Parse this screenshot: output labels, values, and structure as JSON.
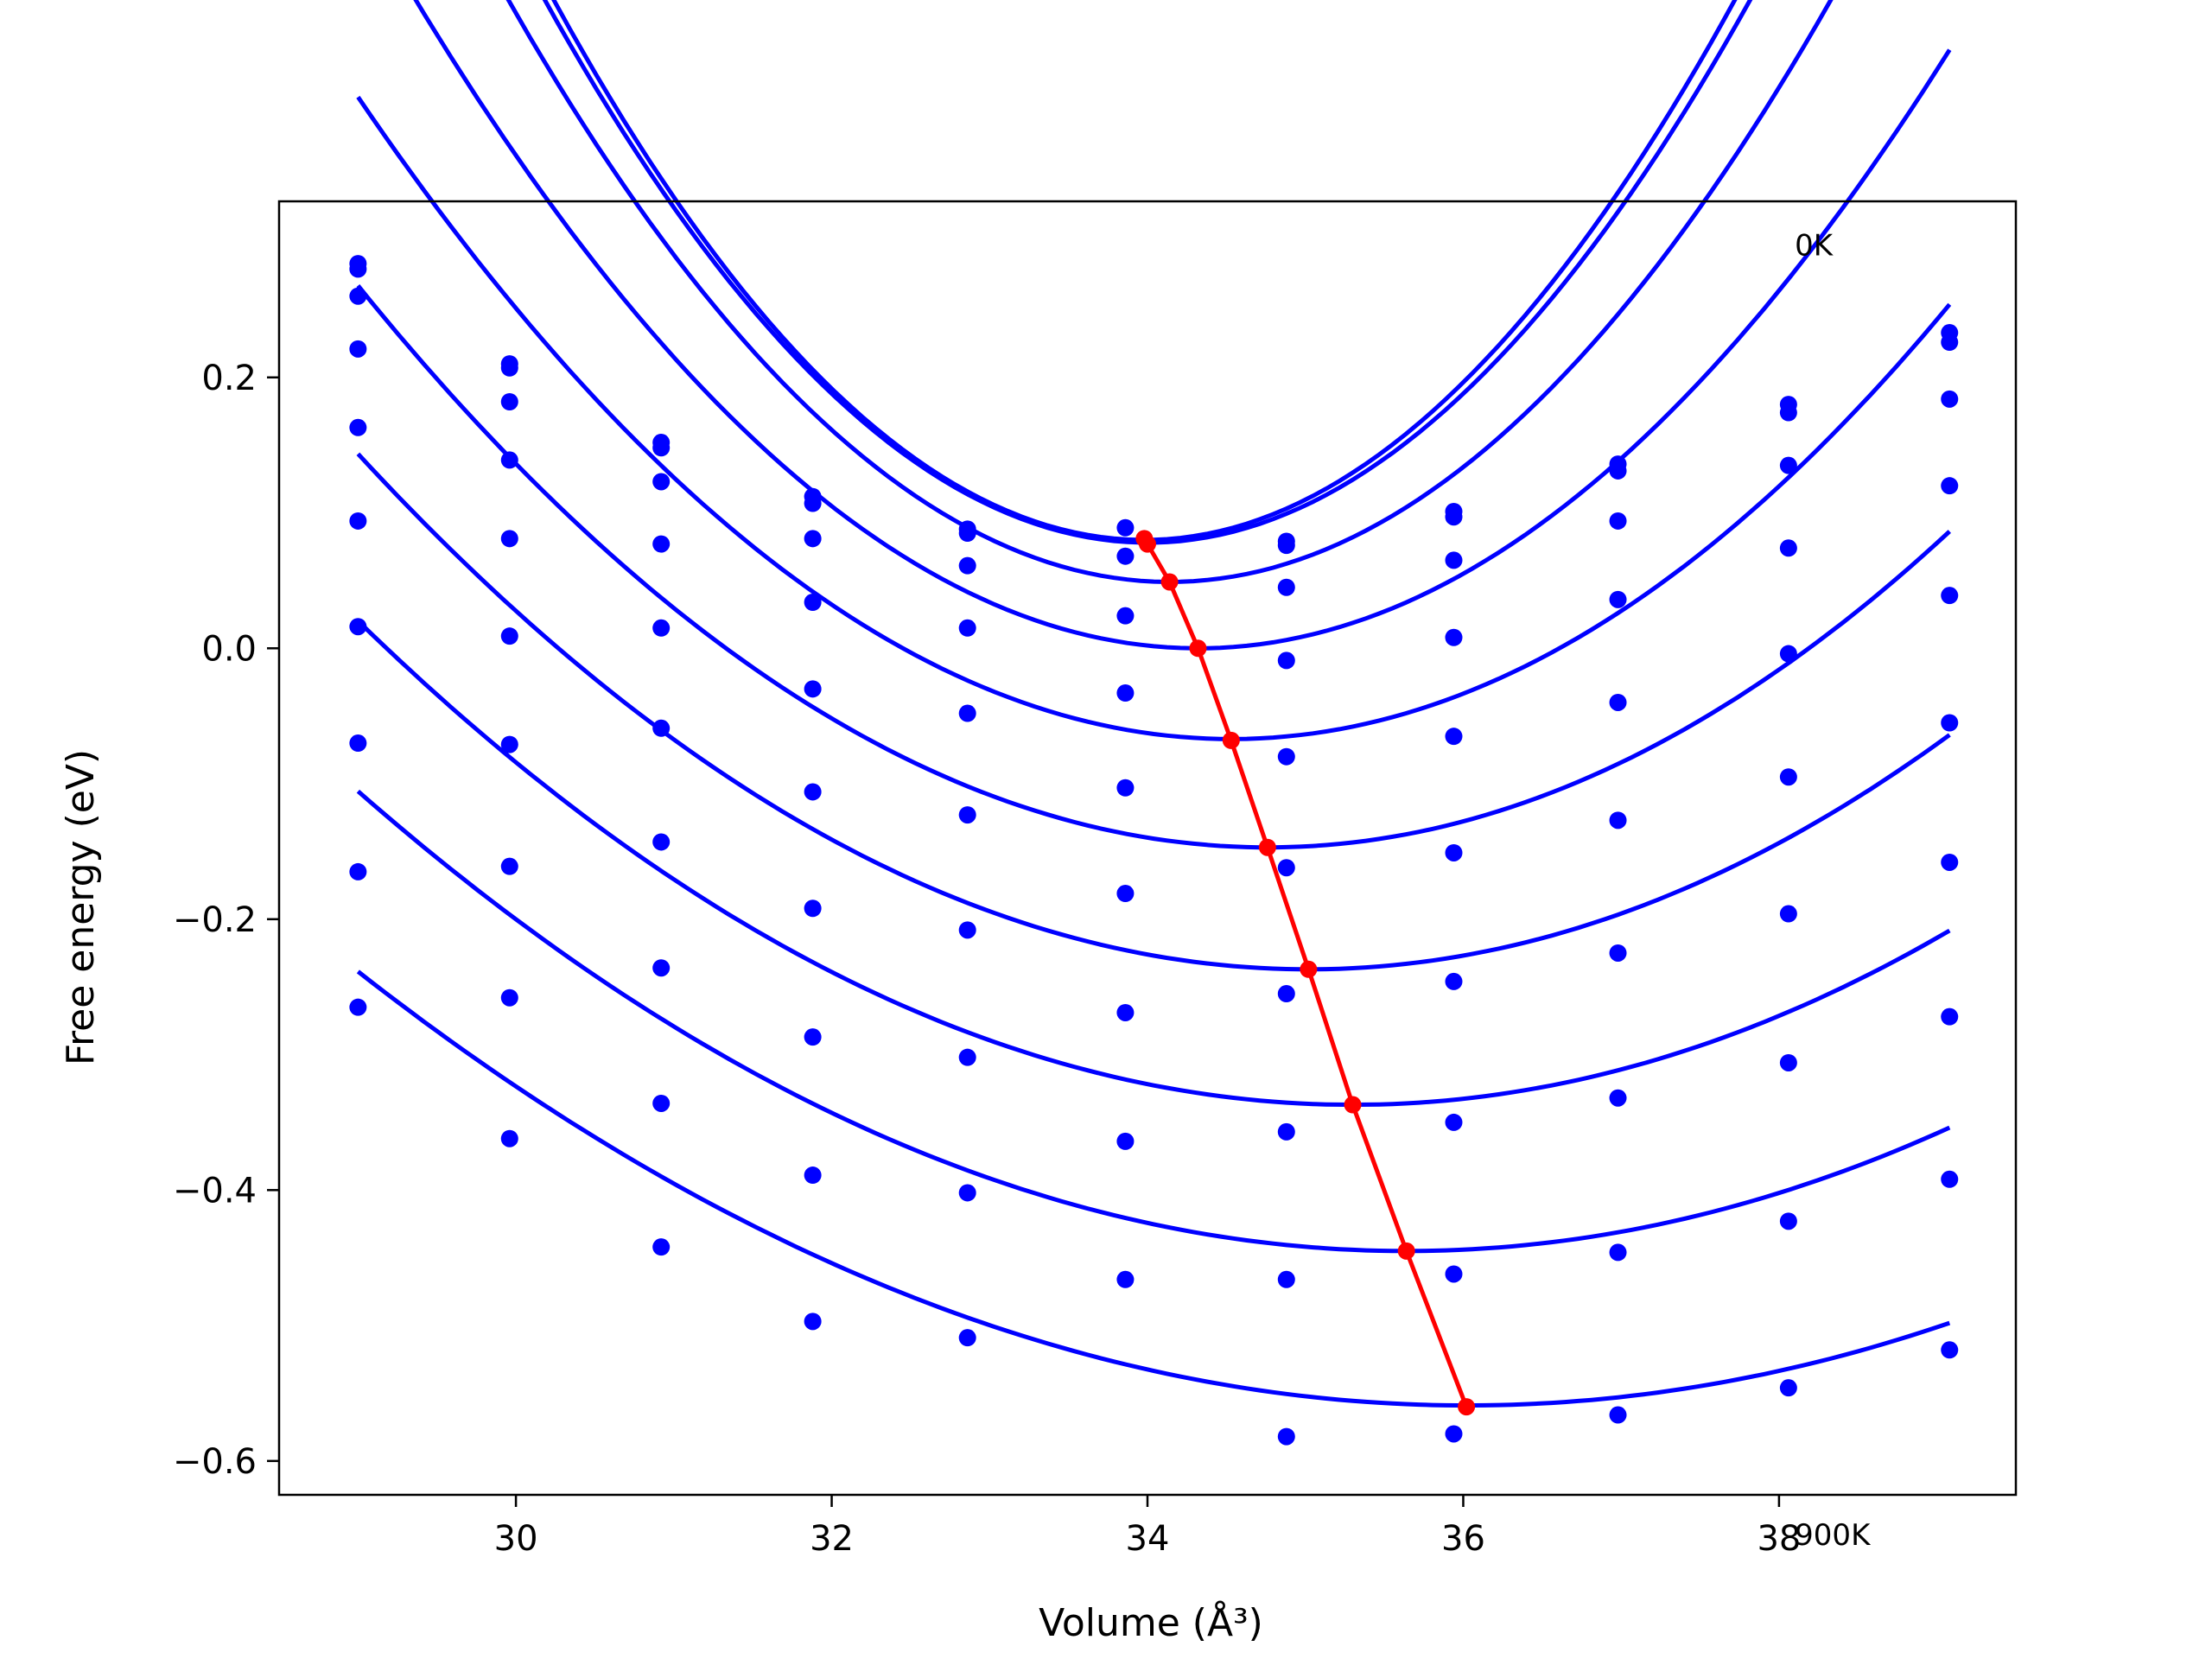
{
  "chart_data": {
    "type": "scatter",
    "xlabel": "Volume (Å³)",
    "ylabel": "Free energy (eV)",
    "xlim": [
      28.5,
      39.5
    ],
    "ylim": [
      -0.625,
      0.33
    ],
    "xticks": [
      30,
      32,
      34,
      36,
      38
    ],
    "xtick_labels": [
      "30",
      "32",
      "34",
      "36",
      "38"
    ],
    "yticks": [
      -0.6,
      -0.4,
      -0.2,
      0.0,
      0.2
    ],
    "ytick_labels": [
      "−0.6",
      "−0.4",
      "−0.2",
      "0.0",
      "0.2"
    ],
    "grid": false,
    "annotations": [
      {
        "text": "0K",
        "x": 38.1,
        "y": 0.29
      },
      {
        "text": "900K",
        "x": 38.1,
        "y": -0.662
      }
    ],
    "colors": {
      "points": "#0000ff",
      "fit": "#0000ff",
      "minimum": "#ff0000"
    },
    "volumes": [
      29.0,
      29.96,
      30.92,
      31.88,
      32.86,
      33.86,
      34.88,
      35.94,
      36.98,
      38.06,
      39.08
    ],
    "series": [
      {
        "energies": [
          0.284,
          0.21,
          0.152,
          0.112,
          0.088,
          0.089,
          0.079,
          0.101,
          0.136,
          0.18,
          0.233
        ],
        "min": {
          "x": 33.98,
          "y": 0.081
        },
        "fit": {
          "a": 0.0285,
          "b": 33.98,
          "c": 0.08
        }
      },
      {
        "energies": [
          0.28,
          0.207,
          0.148,
          0.107,
          0.085,
          0.068,
          0.076,
          0.097,
          0.131,
          0.174,
          0.226
        ],
        "min": {
          "x": 34.0,
          "y": 0.077
        },
        "fit": {
          "a": 0.0275,
          "b": 34.0,
          "c": 0.078
        }
      },
      {
        "energies": [
          0.26,
          0.182,
          0.123,
          0.081,
          0.061,
          0.024,
          0.045,
          0.065,
          0.094,
          0.135,
          0.184
        ],
        "min": {
          "x": 34.14,
          "y": 0.049
        },
        "fit": {
          "a": 0.0245,
          "b": 34.14,
          "c": 0.049
        }
      },
      {
        "energies": [
          0.221,
          0.139,
          0.077,
          0.034,
          0.015,
          -0.033,
          -0.009,
          0.008,
          0.036,
          0.074,
          0.12
        ],
        "min": {
          "x": 34.32,
          "y": 0.0
        },
        "fit": {
          "a": 0.0195,
          "b": 34.32,
          "c": 0.0
        }
      },
      {
        "energies": [
          0.163,
          0.081,
          0.015,
          -0.03,
          -0.048,
          -0.103,
          -0.08,
          -0.065,
          -0.04,
          -0.004,
          0.039
        ],
        "min": {
          "x": 34.53,
          "y": -0.068
        },
        "fit": {
          "a": 0.0155,
          "b": 34.53,
          "c": -0.067
        }
      },
      {
        "energies": [
          0.094,
          0.009,
          -0.059,
          -0.106,
          -0.123,
          -0.181,
          -0.162,
          -0.151,
          -0.127,
          -0.095,
          -0.055
        ],
        "min": {
          "x": 34.76,
          "y": -0.147
        },
        "fit": {
          "a": 0.0125,
          "b": 34.76,
          "c": -0.147
        }
      },
      {
        "energies": [
          0.016,
          -0.071,
          -0.143,
          -0.192,
          -0.208,
          -0.269,
          -0.255,
          -0.246,
          -0.225,
          -0.196,
          -0.158
        ],
        "min": {
          "x": 35.02,
          "y": -0.237
        },
        "fit": {
          "a": 0.0105,
          "b": 35.02,
          "c": -0.237
        }
      },
      {
        "energies": [
          -0.07,
          -0.161,
          -0.236,
          -0.287,
          -0.302,
          -0.364,
          -0.357,
          -0.35,
          -0.332,
          -0.306,
          -0.272
        ],
        "min": {
          "x": 35.3,
          "y": -0.337
        },
        "fit": {
          "a": 0.009,
          "b": 35.3,
          "c": -0.337
        }
      },
      {
        "energies": [
          -0.165,
          -0.258,
          -0.336,
          -0.389,
          -0.402,
          -0.466,
          -0.466,
          -0.462,
          -0.446,
          -0.423,
          -0.392
        ],
        "min": {
          "x": 35.64,
          "y": -0.445
        },
        "fit": {
          "a": 0.0077,
          "b": 35.64,
          "c": -0.445
        }
      },
      {
        "energies": [
          -0.265,
          -0.362,
          -0.442,
          -0.497,
          -0.509,
          null,
          -0.582,
          -0.58,
          -0.566,
          -0.546,
          -0.518
        ],
        "min": {
          "x": 36.02,
          "y": -0.56
        },
        "fit": {
          "a": 0.0065,
          "b": 36.02,
          "c": -0.559
        }
      }
    ]
  }
}
